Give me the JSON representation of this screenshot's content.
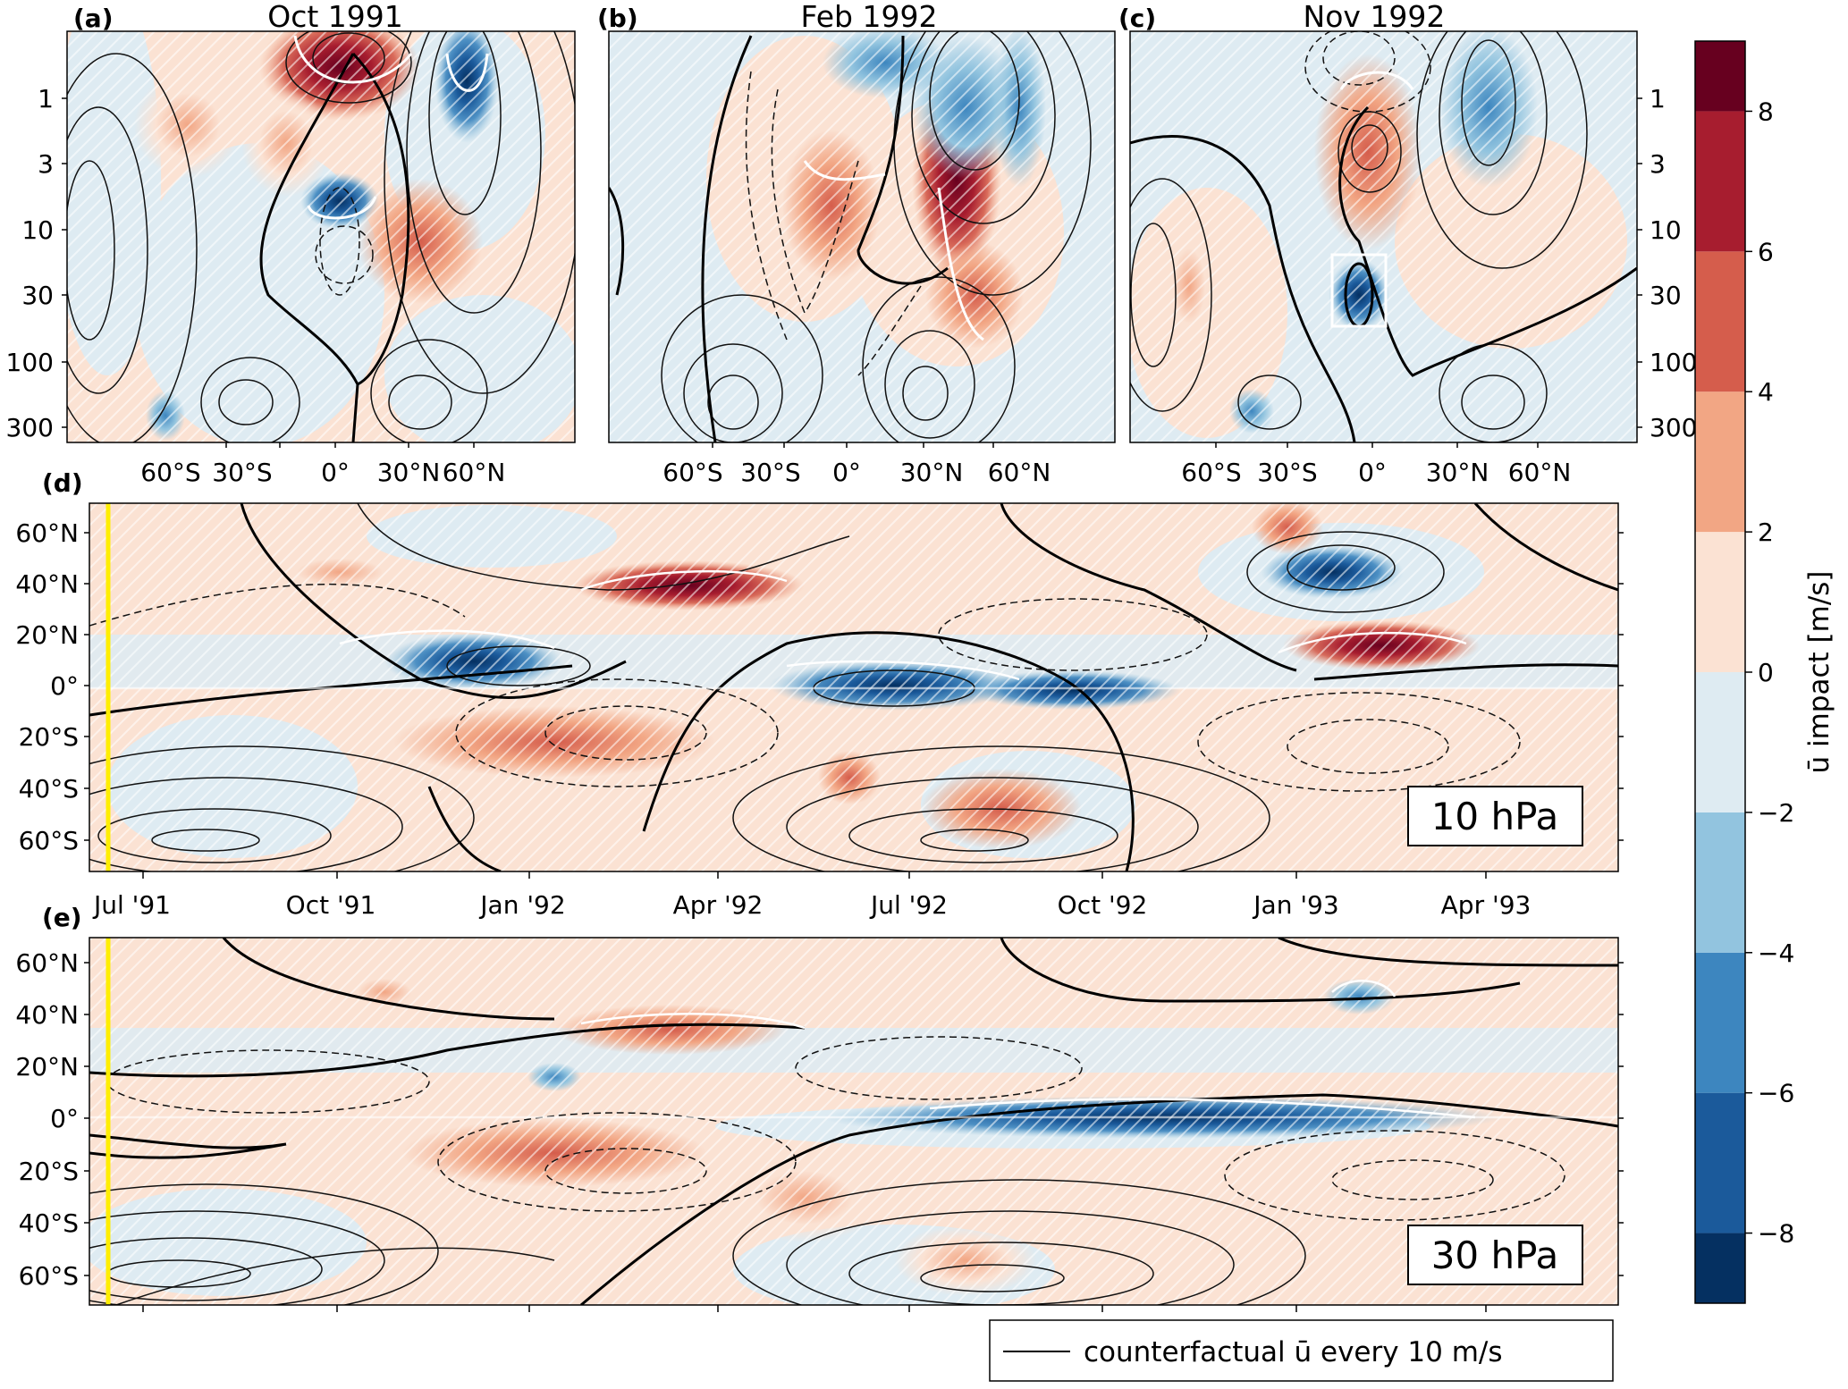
{
  "panels": {
    "a": {
      "letter": "(a)",
      "title": "Oct 1991"
    },
    "b": {
      "letter": "(b)",
      "title": "Feb 1992"
    },
    "c": {
      "letter": "(c)",
      "title": "Nov 1992"
    },
    "d": {
      "letter": "(d)",
      "level": "10 hPa"
    },
    "e": {
      "letter": "(e)",
      "level": "30 hPa"
    }
  },
  "legend_text": "counterfactual ū every 10 m/s",
  "colorbar_label": "ū impact [m/s]",
  "chart_data": [
    {
      "type": "heatmap",
      "panel": "a",
      "title": "Oct 1991",
      "x_ticks": [
        "60°S",
        "30°S",
        "0°",
        "30°N",
        "60°N"
      ],
      "y_ticks": [
        "1",
        "3",
        "10",
        "30",
        "100",
        "300"
      ],
      "y_scale": "log",
      "features": [
        {
          "lat": 5,
          "p": 0.6,
          "value": 8
        },
        {
          "lat": 50,
          "p": 1.0,
          "value": -5
        },
        {
          "lat": 0,
          "p": 6,
          "value": -6
        },
        {
          "lat": 20,
          "p": 10,
          "value": 3
        },
        {
          "lat": -10,
          "p": 3,
          "value": 3
        }
      ]
    },
    {
      "type": "heatmap",
      "panel": "b",
      "title": "Feb 1992",
      "x_ticks": [
        "60°S",
        "30°S",
        "0°",
        "30°N",
        "60°N"
      ],
      "y_ticks": [
        "1",
        "3",
        "10",
        "30",
        "100",
        "300"
      ],
      "y_scale": "log",
      "features": [
        {
          "lat": 30,
          "p": 4,
          "value": 8
        },
        {
          "lat": -5,
          "p": 10,
          "value": 5
        },
        {
          "lat": 35,
          "p": 20,
          "value": 5
        },
        {
          "lat": 30,
          "p": 1,
          "value": -4
        },
        {
          "lat": 60,
          "p": 3,
          "value": -3
        }
      ]
    },
    {
      "type": "heatmap",
      "panel": "c",
      "title": "Nov 1992",
      "x_ticks": [
        "60°S",
        "30°S",
        "0°",
        "30°N",
        "60°N"
      ],
      "y_ticks": [
        "1",
        "3",
        "10",
        "30",
        "100",
        "300"
      ],
      "y_scale": "log",
      "features": [
        {
          "lat": 0,
          "p": 25,
          "value": -7
        },
        {
          "lat": 0,
          "p": 2.5,
          "value": 5
        },
        {
          "lat": 40,
          "p": 1.5,
          "value": -4
        },
        {
          "lat": -50,
          "p": 20,
          "value": 2
        }
      ]
    },
    {
      "type": "heatmap",
      "panel": "d",
      "level": "10 hPa",
      "x_ticks": [
        "Jul '91",
        "Oct '91",
        "Jan '92",
        "Apr '92",
        "Jul '92",
        "Oct '92",
        "Jan '93",
        "Apr '93"
      ],
      "y_ticks": [
        "60°N",
        "40°N",
        "20°N",
        "0°",
        "20°S",
        "40°S",
        "60°S"
      ],
      "marked_date": "Jun 1991",
      "features": [
        {
          "t": 1992.25,
          "lat": 37,
          "value": 7
        },
        {
          "t": 1991.95,
          "lat": 5,
          "value": -7
        },
        {
          "t": 1992.1,
          "lat": -12,
          "value": 5
        },
        {
          "t": 1992.65,
          "lat": 2,
          "value": -6
        },
        {
          "t": 1992.85,
          "lat": 2,
          "value": -6
        },
        {
          "t": 1993.05,
          "lat": 12,
          "value": 7
        },
        {
          "t": 1993.15,
          "lat": 43,
          "value": -7
        },
        {
          "t": 1992.7,
          "lat": -48,
          "value": 4
        }
      ]
    },
    {
      "type": "heatmap",
      "panel": "e",
      "level": "30 hPa",
      "x_ticks": [
        "Jul '91",
        "Oct '91",
        "Jan '92",
        "Apr '92",
        "Jul '92",
        "Oct '92",
        "Jan '93",
        "Apr '93"
      ],
      "y_ticks": [
        "60°N",
        "40°N",
        "20°N",
        "0°",
        "20°S",
        "40°S",
        "60°S"
      ],
      "marked_date": "Jun 1991",
      "features": [
        {
          "t": 1992.2,
          "lat": 40,
          "value": 5
        },
        {
          "t": 1992.1,
          "lat": -12,
          "value": 5
        },
        {
          "t": 1992.95,
          "lat": 5,
          "value": -5
        },
        {
          "t": 1992.7,
          "lat": -55,
          "value": 3
        }
      ]
    }
  ],
  "colorbar": {
    "ticks": [
      "8",
      "6",
      "4",
      "2",
      "0",
      "−2",
      "−4",
      "−6",
      "−8"
    ],
    "levels": [
      -9,
      -8,
      -6,
      -4,
      -2,
      0,
      2,
      4,
      6,
      8,
      9
    ],
    "colors": [
      "#053061",
      "#1b5a9b",
      "#3d86bf",
      "#92c4df",
      "#deebf2",
      "#fbe2d3",
      "#f2a684",
      "#d55d4c",
      "#a71d2f",
      "#67001f"
    ]
  }
}
